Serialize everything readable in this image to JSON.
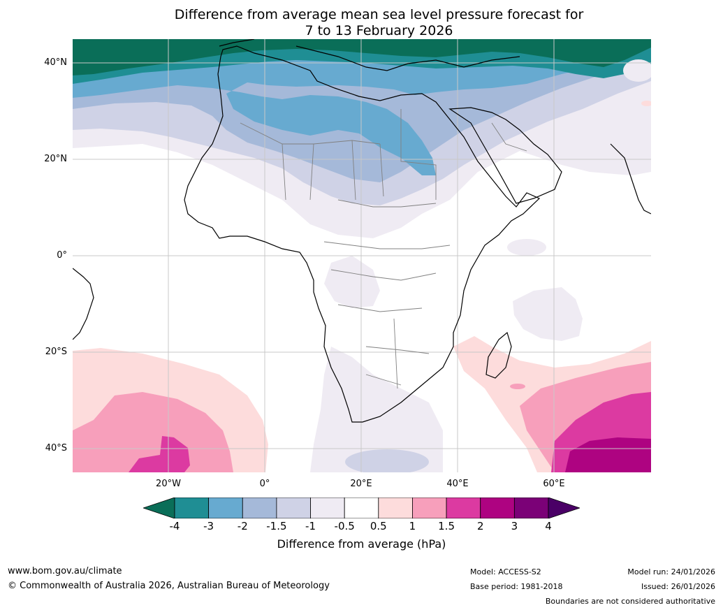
{
  "title": {
    "line1": "Difference from average mean sea level pressure forecast for",
    "line2": "7 to 13 February 2026"
  },
  "axes": {
    "lat_labels": [
      "40°N",
      "20°N",
      "0°",
      "20°S",
      "40°S"
    ],
    "lon_labels": [
      "20°W",
      "0°",
      "20°E",
      "40°E",
      "60°E"
    ]
  },
  "colorbar": {
    "title": "Difference from average (hPa)",
    "ticks": [
      "-4",
      "-3",
      "-2",
      "-1.5",
      "-1",
      "-0.5",
      "0.5",
      "1",
      "1.5",
      "2",
      "3",
      "4"
    ],
    "colors": [
      "#0a6e58",
      "#1f8e94",
      "#67aad0",
      "#a5b9d9",
      "#cfd2e6",
      "#efebf3",
      "#ffffff",
      "#fddcdc",
      "#f79fbb",
      "#dc3aa1",
      "#ae0381",
      "#7b0177",
      "#4a0066"
    ]
  },
  "footer": {
    "website": "www.bom.gov.au/climate",
    "copyright": "© Commonwealth of Australia 2026, Australian Bureau of Meteorology",
    "model": "Model: ACCESS-S2",
    "base_period": "Base period: 1981-2018",
    "model_run": "Model run: 24/01/2026",
    "issued": "Issued: 26/01/2026",
    "disclaimer": "Boundaries are not considered authoritative"
  }
}
